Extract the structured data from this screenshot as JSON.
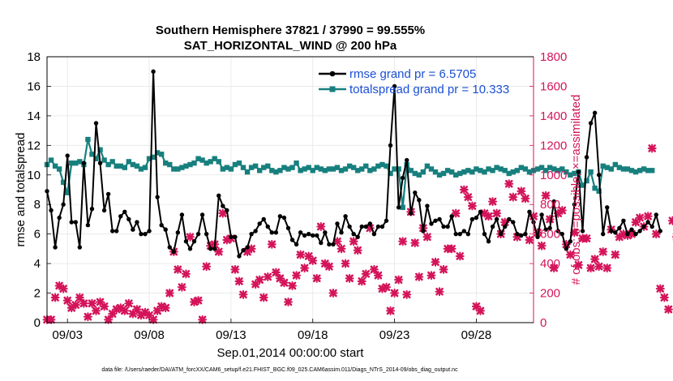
{
  "chart_data": {
    "type": "line",
    "title_line1": "Southern Hemisphere 37821 / 37990 = 99.555%",
    "title_line2": "SAT_HORIZONTAL_WIND @ 200 hPa",
    "xlabel": "Sep.01,2014 00:00:00 start",
    "ylabel_left": "rmse and totalspread",
    "ylabel_right": "# of obs: o=possible; ×=assimilated",
    "xlim": [
      1.75,
      31.5
    ],
    "ylim_left": [
      0,
      18
    ],
    "ylim_right": [
      0,
      1800
    ],
    "xticks": [
      {
        "x": 3,
        "label": "09/03"
      },
      {
        "x": 8,
        "label": "09/08"
      },
      {
        "x": 13,
        "label": "09/13"
      },
      {
        "x": 18,
        "label": "09/18"
      },
      {
        "x": 23,
        "label": "09/23"
      },
      {
        "x": 28,
        "label": "09/28"
      }
    ],
    "yticks_left": [
      "0",
      "2",
      "4",
      "6",
      "8",
      "10",
      "12",
      "14",
      "16",
      "18"
    ],
    "yticks_right": [
      "0",
      "200",
      "400",
      "600",
      "800",
      "1000",
      "1200",
      "1400",
      "1600",
      "1800"
    ],
    "colors": {
      "rmse": "#000000",
      "spread": "#17807e",
      "obs": "#d4145a",
      "legend_text": "#1a4fd6"
    },
    "x_start": 1.75,
    "x_step": 0.25,
    "series": [
      {
        "name": "rmse grand pr = 6.5705",
        "axis": "left",
        "values": [
          8.9,
          7.6,
          5.1,
          7.1,
          8.0,
          11.3,
          6.8,
          6.8,
          5.1,
          10.8,
          6.6,
          7.7,
          13.5,
          10.8,
          7.6,
          8.7,
          6.2,
          6.2,
          7.2,
          7.5,
          7.0,
          6.3,
          6.8,
          6.0,
          6.0,
          6.2,
          17.0,
          8.5,
          6.6,
          6.3,
          5.1,
          4.8,
          6.1,
          7.3,
          5.5,
          5.0,
          5.5,
          6.0,
          7.3,
          6.0,
          5.0,
          5.0,
          8.6,
          7.9,
          7.6,
          5.8,
          5.8,
          4.5,
          4.9,
          5.1,
          6.0,
          6.2,
          6.7,
          7.0,
          6.5,
          6.1,
          6.1,
          7.2,
          7.1,
          6.4,
          5.6,
          5.3,
          6.1,
          5.9,
          6.0,
          5.9,
          5.9,
          5.4,
          6.1,
          5.3,
          5.3,
          6.7,
          6.1,
          7.2,
          6.5,
          6.0,
          5.8,
          6.5,
          6.5,
          6.7,
          6.0,
          6.5,
          6.5,
          6.9,
          12.0,
          16.0,
          7.8,
          9.8,
          11.0,
          7.4,
          8.8,
          8.3,
          6.2,
          7.9,
          6.7,
          6.9,
          7.0,
          6.5,
          6.5,
          7.2,
          6.0,
          6.0,
          6.2,
          6.0,
          7.0,
          7.1,
          7.5,
          6.0,
          5.5,
          6.5,
          7.0,
          6.0,
          6.5,
          7.0,
          6.8,
          6.0,
          5.9,
          6.0,
          7.5,
          6.8,
          5.8,
          7.3,
          6.3,
          6.4,
          8.2,
          6.2,
          6.0,
          5.0,
          5.5,
          8.0,
          10.2,
          6.2,
          11.2,
          13.5,
          14.2,
          10.0,
          6.0,
          7.8,
          6.2,
          6.1,
          6.4,
          6.9,
          6.0,
          6.3,
          6.0,
          6.2,
          6.5,
          6.8,
          6.5,
          7.3,
          6.2
        ]
      },
      {
        "name": "totalspread grand pr = 10.333",
        "axis": "left",
        "values": [
          10.7,
          11.0,
          10.6,
          10.4,
          9.5,
          8.8,
          10.8,
          10.8,
          10.9,
          10.7,
          12.4,
          11.4,
          11.1,
          11.7,
          11.0,
          10.7,
          10.9,
          10.6,
          10.6,
          10.5,
          10.9,
          10.7,
          10.6,
          10.4,
          10.5,
          11.1,
          11.2,
          11.5,
          11.4,
          10.8,
          10.7,
          10.4,
          10.4,
          10.5,
          10.6,
          10.7,
          10.8,
          11.1,
          11.0,
          10.8,
          10.9,
          11.1,
          10.9,
          10.4,
          10.5,
          10.4,
          10.7,
          10.8,
          10.5,
          10.2,
          10.5,
          10.6,
          10.3,
          10.5,
          10.6,
          10.3,
          10.2,
          10.3,
          10.5,
          10.4,
          10.5,
          10.8,
          10.3,
          10.4,
          10.5,
          10.3,
          10.5,
          10.4,
          10.3,
          10.4,
          10.4,
          10.5,
          10.3,
          10.4,
          10.6,
          10.5,
          10.3,
          10.4,
          10.6,
          10.3,
          10.4,
          10.6,
          10.7,
          10.6,
          10.1,
          10.4,
          10.4,
          7.8,
          10.7,
          10.3,
          10.1,
          10.0,
          10.2,
          10.6,
          10.4,
          10.2,
          10.0,
          10.1,
          10.3,
          10.2,
          10.0,
          10.1,
          10.2,
          10.3,
          10.2,
          10.4,
          10.3,
          10.2,
          10.4,
          10.3,
          10.5,
          10.4,
          10.3,
          10.1,
          10.2,
          10.3,
          10.5,
          10.4,
          10.2,
          10.3,
          10.4,
          10.5,
          10.3,
          10.5,
          10.4,
          10.3,
          10.4,
          10.2,
          10.0,
          10.1,
          10.2,
          9.3,
          9.6,
          10.2,
          9.1,
          8.9,
          10.6,
          10.5,
          10.4,
          10.7,
          10.5,
          10.4,
          10.4,
          10.3,
          10.2,
          10.3,
          10.4,
          10.3,
          10.3
        ]
      },
      {
        "name": "# of obs assimilated",
        "axis": "right",
        "values": [
          20,
          20,
          170,
          250,
          230,
          150,
          100,
          120,
          170,
          130,
          40,
          130,
          80,
          140,
          110,
          20,
          60,
          90,
          100,
          80,
          130,
          60,
          90,
          50,
          70,
          50,
          20,
          80,
          110,
          100,
          200,
          480,
          360,
          240,
          330,
          580,
          140,
          150,
          20,
          380,
          520,
          530,
          480,
          740,
          560,
          570,
          360,
          280,
          190,
          480,
          500,
          260,
          290,
          170,
          310,
          530,
          340,
          300,
          270,
          140,
          250,
          320,
          460,
          370,
          450,
          420,
          300,
          650,
          400,
          380,
          200,
          550,
          500,
          400,
          300,
          550,
          490,
          280,
          330,
          640,
          360,
          320,
          230,
          240,
          80,
          200,
          290,
          550,
          190,
          750,
          540,
          310,
          640,
          580,
          320,
          410,
          210,
          360,
          500,
          500,
          740,
          450,
          900,
          850,
          790,
          110,
          80,
          740,
          720,
          820,
          740,
          600,
          680,
          940,
          850,
          580,
          890,
          840,
          560,
          720,
          610,
          520,
          860,
          700,
          370,
          740,
          760,
          530,
          460,
          610,
          390,
          570,
          570,
          370,
          430,
          380,
          480,
          370,
          630,
          460,
          580,
          600,
          590,
          600,
          680,
          710,
          650,
          720,
          1180,
          600,
          230,
          170,
          90,
          690,
          580,
          720
        ]
      }
    ],
    "footnote": "data file: /Users/raeder/DAI/ATM_forcXX/CAM6_setup/f.e21.FHIST_BGC.f09_025.CAM6assim.011/Diags_NTrS_2014-09/obs_diag_output.nc"
  }
}
